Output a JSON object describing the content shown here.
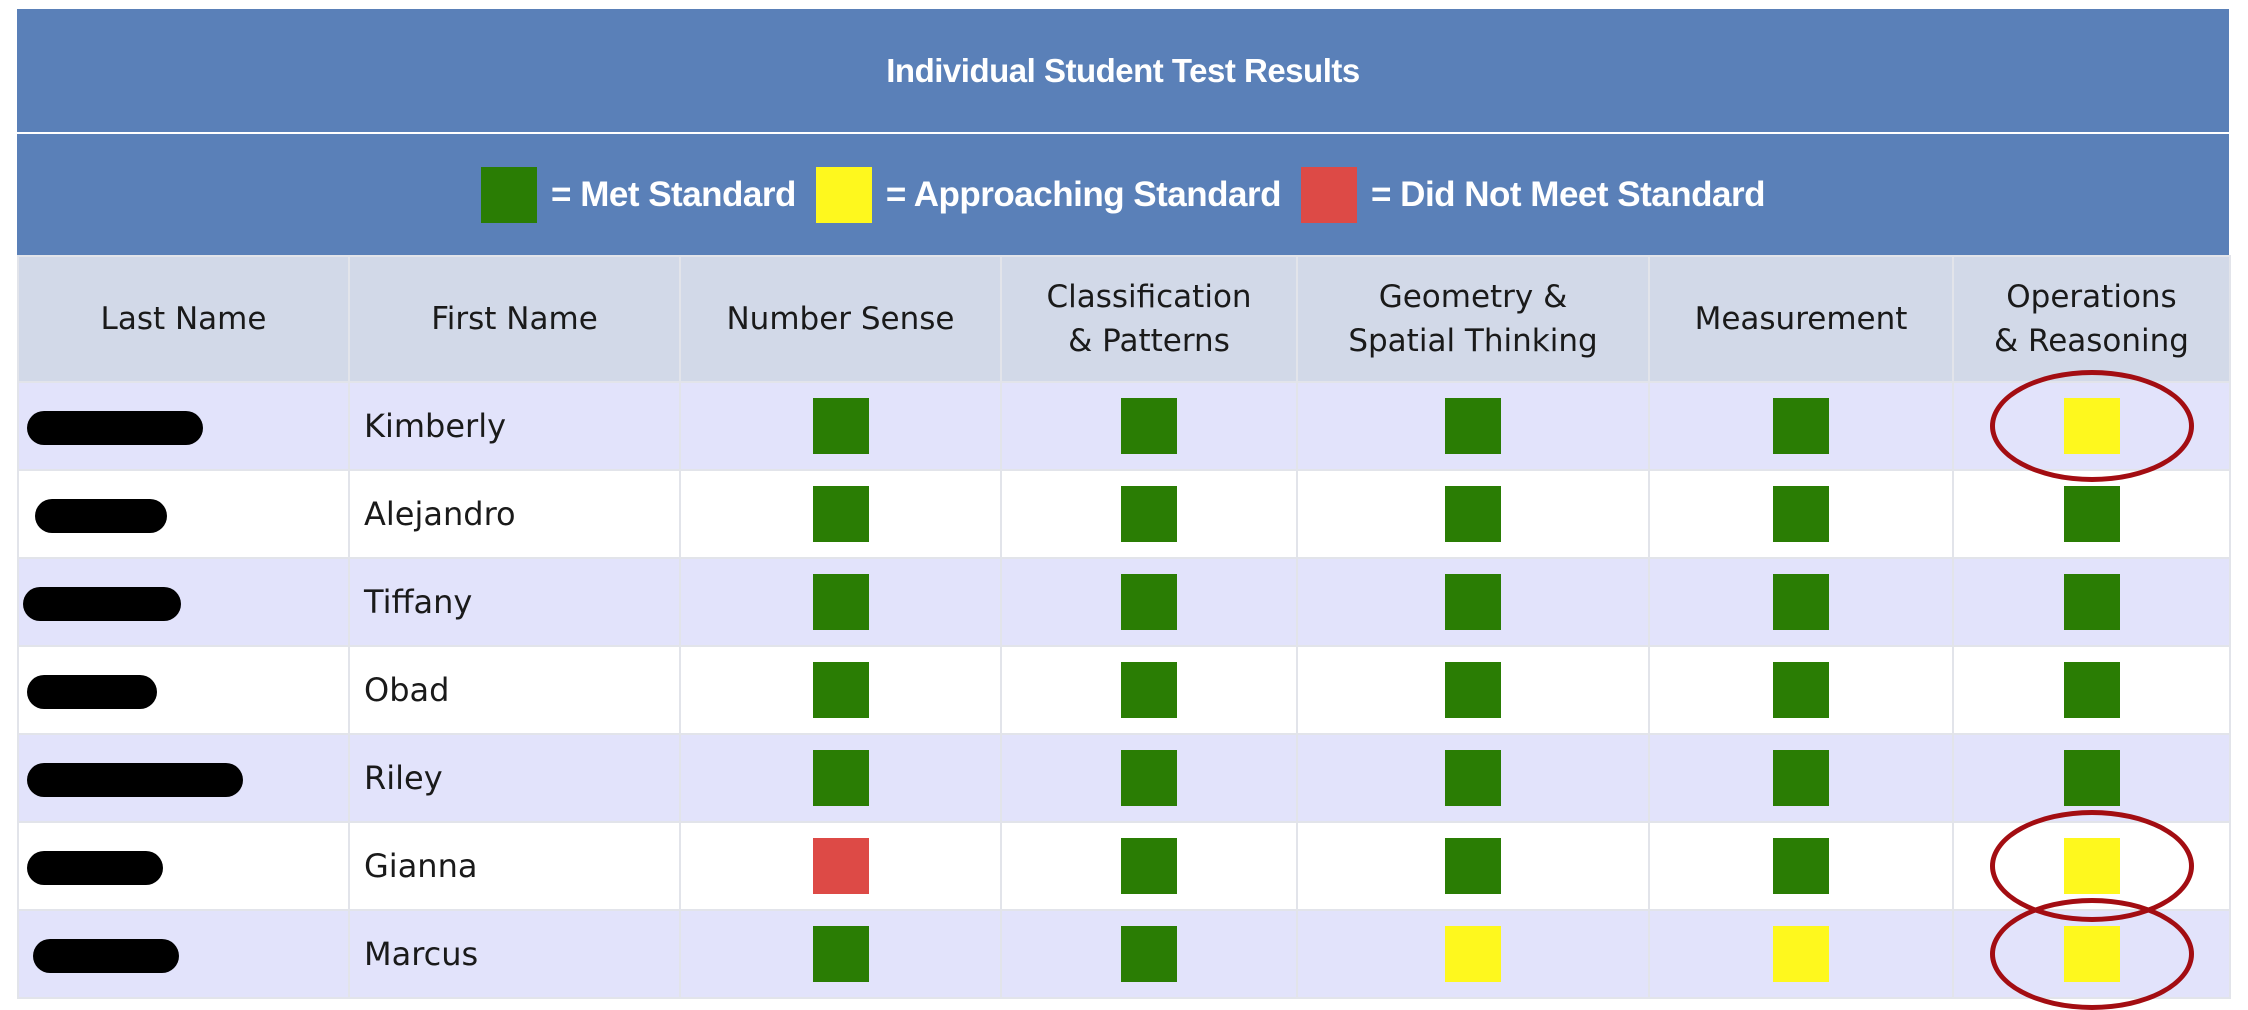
{
  "title": "Individual Student Test Results",
  "legend": [
    {
      "label": "= Met Standard",
      "color": "#2a7d04"
    },
    {
      "label": "= Approaching Standard",
      "color": "#fef81e"
    },
    {
      "label": "= Did Not Meet Standard",
      "color": "#dd4a46"
    }
  ],
  "columns": {
    "last_name": "Last Name",
    "first_name": "First Name",
    "number_sense": "Number Sense",
    "classification_l1": "Classification",
    "classification_l2": "& Patterns",
    "geometry_l1": "Geometry &",
    "geometry_l2": "Spatial Thinking",
    "measurement": "Measurement",
    "operations_l1": "Operations",
    "operations_l2": "& Reasoning"
  },
  "status_colors": {
    "met": "#2a7d04",
    "approaching": "#fef81e",
    "not_met": "#dd4a46"
  },
  "rows": [
    {
      "first_name": "Kimberly",
      "scores": [
        "met",
        "met",
        "met",
        "met",
        "approaching"
      ],
      "highlight": true
    },
    {
      "first_name": "Alejandro",
      "scores": [
        "met",
        "met",
        "met",
        "met",
        "met"
      ],
      "highlight": false
    },
    {
      "first_name": "Tiffany",
      "scores": [
        "met",
        "met",
        "met",
        "met",
        "met"
      ],
      "highlight": false
    },
    {
      "first_name": "Obad",
      "scores": [
        "met",
        "met",
        "met",
        "met",
        "met"
      ],
      "highlight": false
    },
    {
      "first_name": "Riley",
      "scores": [
        "met",
        "met",
        "met",
        "met",
        "met"
      ],
      "highlight": false
    },
    {
      "first_name": "Gianna",
      "scores": [
        "not_met",
        "met",
        "met",
        "met",
        "approaching"
      ],
      "highlight": true
    },
    {
      "first_name": "Marcus",
      "scores": [
        "met",
        "met",
        "approaching",
        "approaching",
        "approaching"
      ],
      "highlight": true
    }
  ]
}
